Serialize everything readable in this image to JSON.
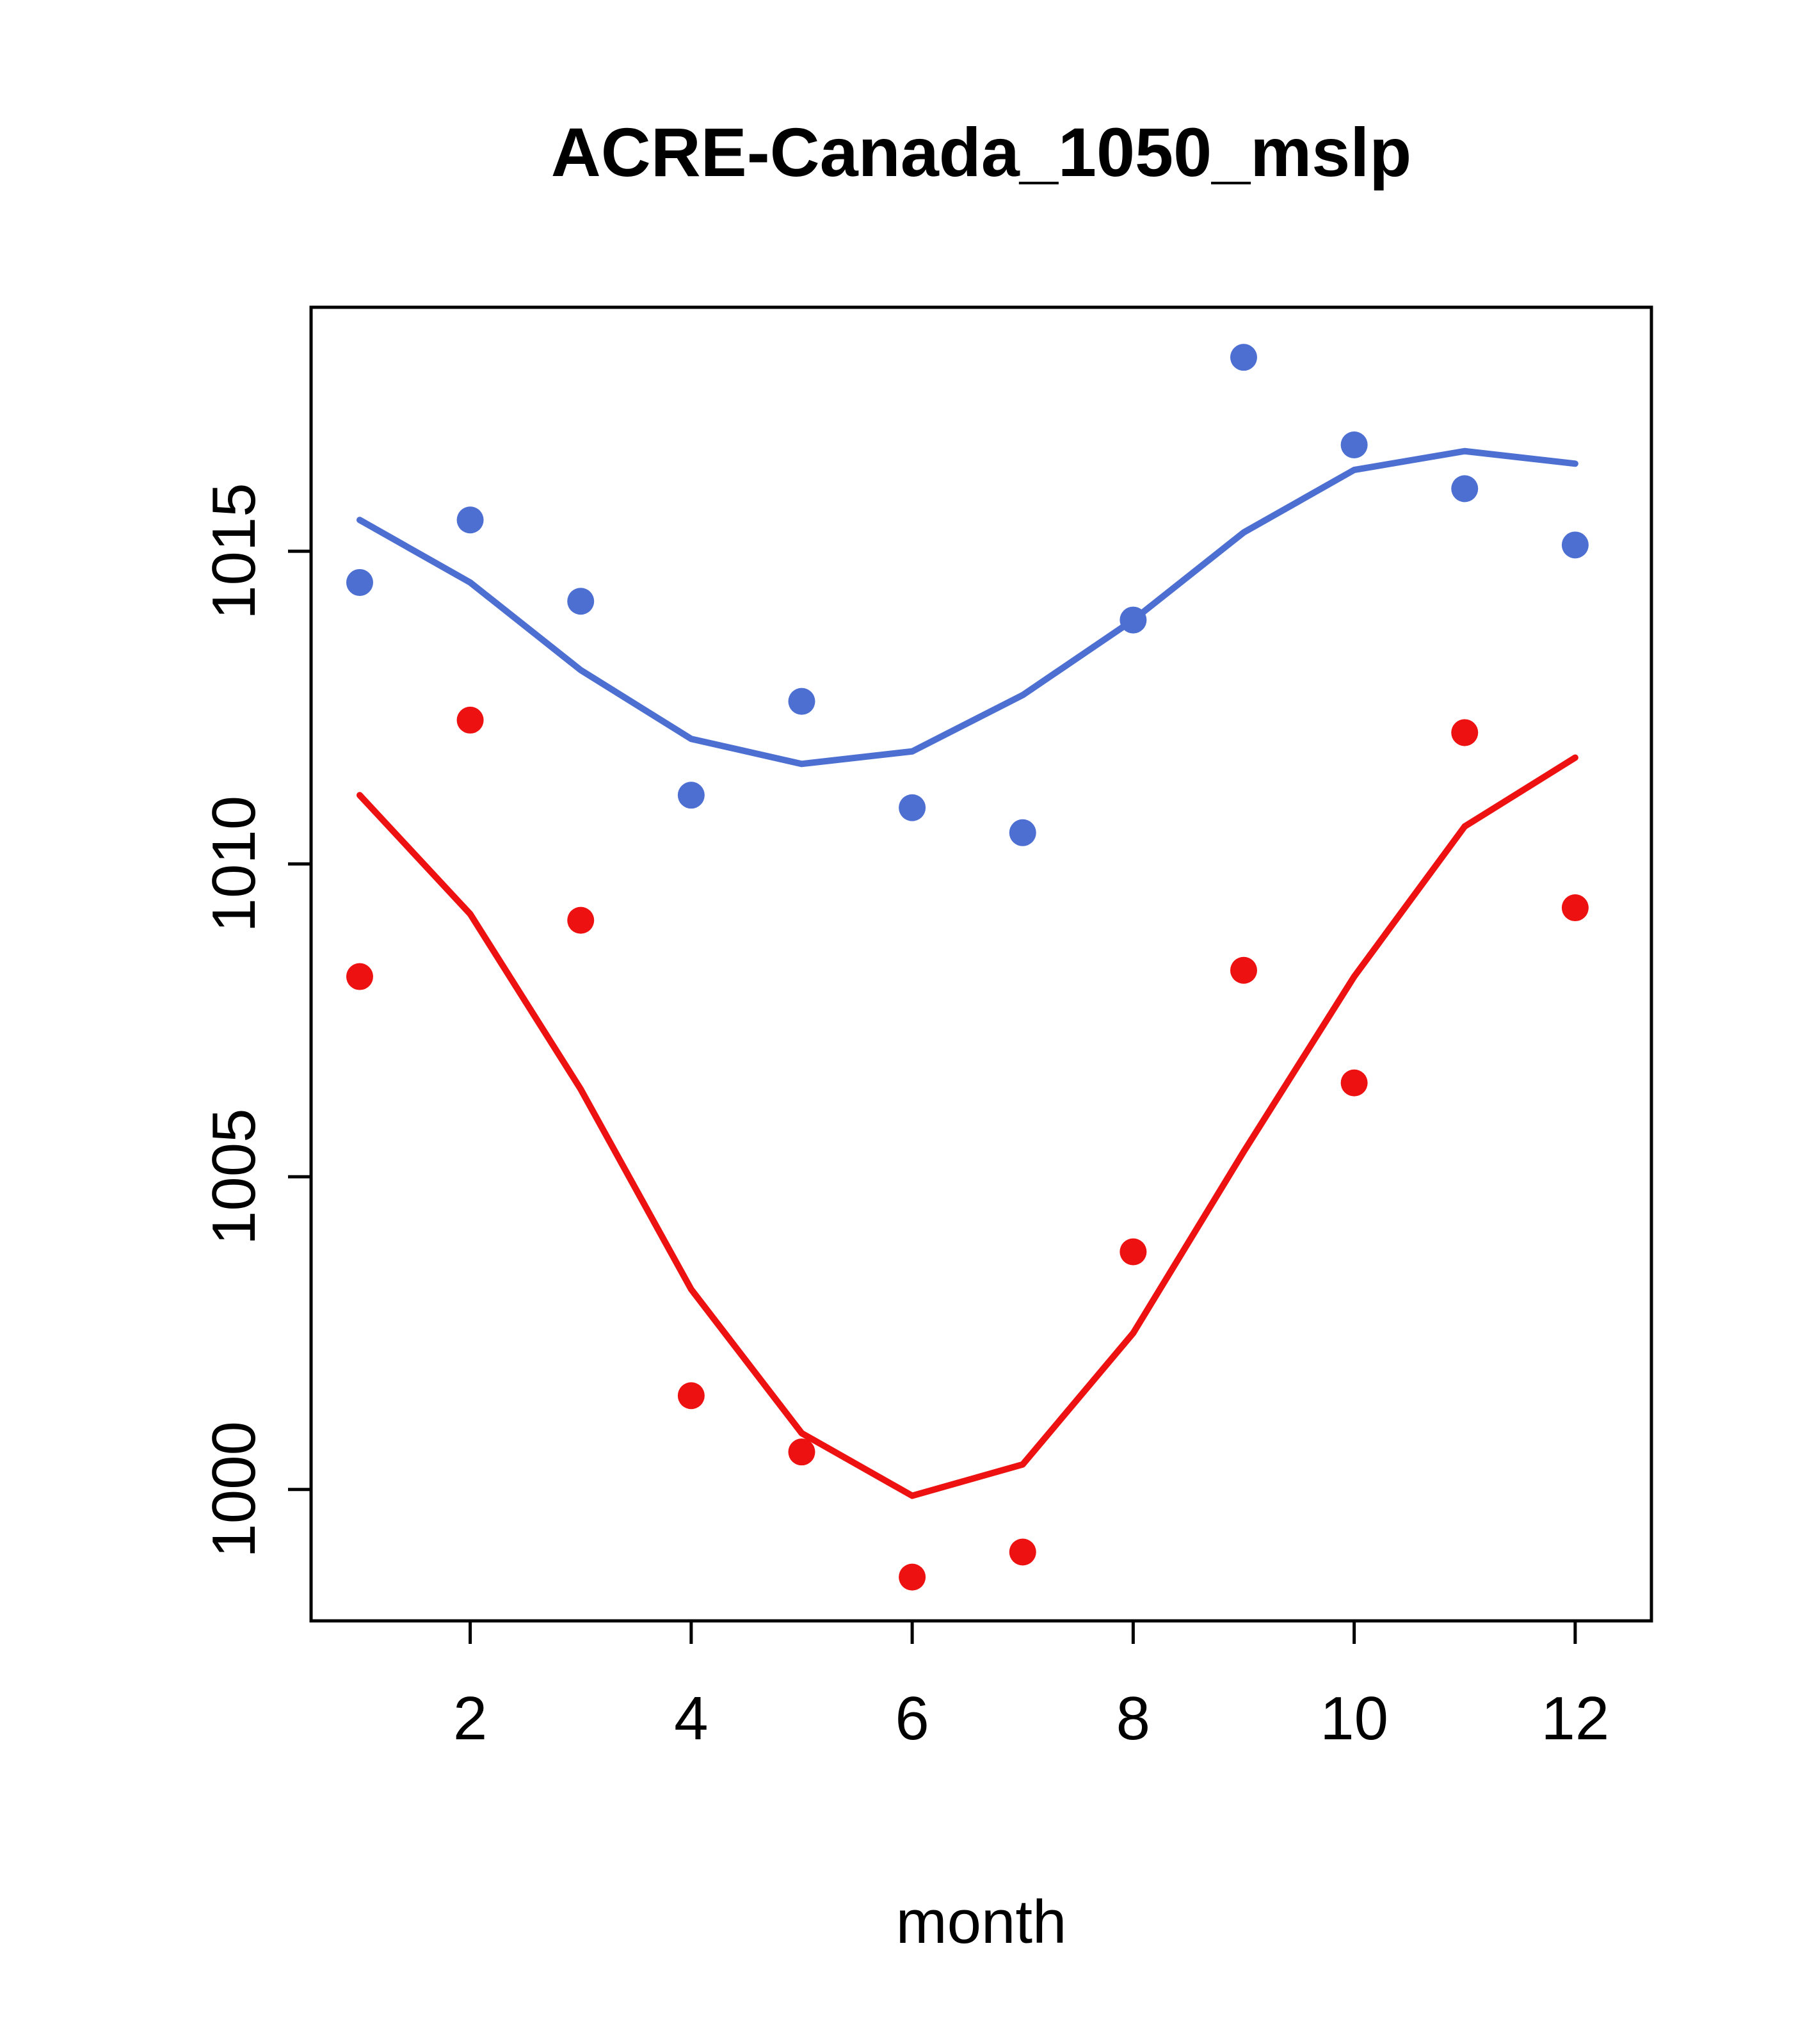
{
  "chart_data": {
    "type": "scatter",
    "title": "ACRE-Canada_1050_mslp",
    "xlabel": "month",
    "ylabel": "",
    "grid": false,
    "legend": "none",
    "xlim": [
      0.56,
      12.69
    ],
    "ylim": [
      997.9,
      1018.9
    ],
    "xticks": [
      2,
      4,
      6,
      8,
      10,
      12
    ],
    "yticks": [
      1000,
      1005,
      1010,
      1015
    ],
    "x": [
      1,
      2,
      3,
      4,
      5,
      6,
      7,
      8,
      9,
      10,
      11,
      12
    ],
    "colors": {
      "blue_series": "#4d6fd2",
      "red_series": "#ee1111",
      "axis": "#000000"
    },
    "series": [
      {
        "name": "blue-points",
        "kind": "points",
        "color": "#4d6fd2",
        "values": [
          1014.5,
          1015.5,
          1014.2,
          1011.1,
          1012.6,
          1010.9,
          1010.5,
          1013.9,
          1018.1,
          1016.7,
          1016.0,
          1015.1
        ]
      },
      {
        "name": "blue-smooth-line",
        "kind": "line",
        "color": "#4d6fd2",
        "values": [
          1015.5,
          1014.5,
          1013.1,
          1012.0,
          1011.6,
          1011.8,
          1012.7,
          1013.9,
          1015.3,
          1016.3,
          1016.6,
          1016.4
        ]
      },
      {
        "name": "red-points",
        "kind": "points",
        "color": "#ee1111",
        "values": [
          1008.2,
          1012.3,
          1009.1,
          1001.5,
          1000.6,
          998.6,
          999.0,
          1003.8,
          1008.3,
          1006.5,
          1012.1,
          1009.3
        ]
      },
      {
        "name": "red-smooth-line",
        "kind": "line",
        "color": "#ee1111",
        "values": [
          1011.1,
          1009.2,
          1006.4,
          1003.2,
          1000.9,
          999.9,
          1000.4,
          1002.5,
          1005.4,
          1008.2,
          1010.6,
          1011.7
        ]
      }
    ]
  }
}
